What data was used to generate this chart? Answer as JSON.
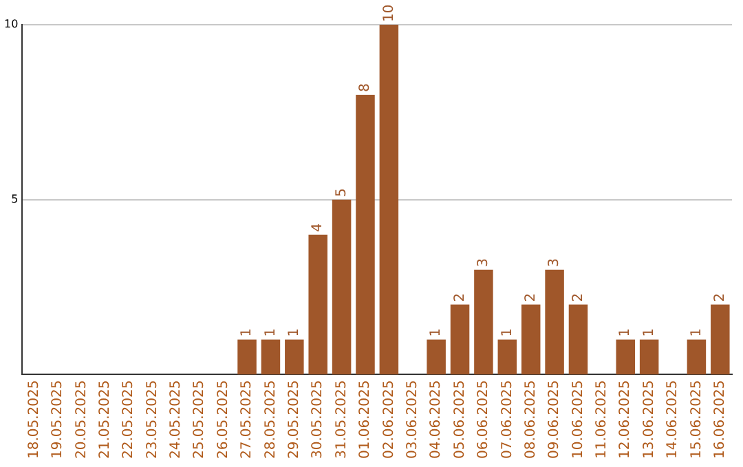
{
  "chart_data": {
    "type": "bar",
    "categories": [
      "18.05.2025",
      "19.05.2025",
      "20.05.2025",
      "21.05.2025",
      "22.05.2025",
      "23.05.2025",
      "24.05.2025",
      "25.05.2025",
      "26.05.2025",
      "27.05.2025",
      "28.05.2025",
      "29.05.2025",
      "30.05.2025",
      "31.05.2025",
      "01.06.2025",
      "02.06.2025",
      "03.06.2025",
      "04.06.2025",
      "05.06.2025",
      "06.06.2025",
      "07.06.2025",
      "08.06.2025",
      "09.06.2025",
      "10.06.2025",
      "11.06.2025",
      "12.06.2025",
      "13.06.2025",
      "14.06.2025",
      "15.06.2025",
      "16.06.2025"
    ],
    "values": [
      0,
      0,
      0,
      0,
      0,
      0,
      0,
      0,
      0,
      1,
      1,
      1,
      4,
      5,
      8,
      10,
      0,
      1,
      2,
      3,
      1,
      2,
      3,
      2,
      0,
      1,
      1,
      0,
      1,
      2
    ],
    "value_labels": [
      null,
      null,
      null,
      null,
      null,
      null,
      null,
      null,
      null,
      "1",
      "1",
      "1",
      "4",
      "5",
      "8",
      "10",
      null,
      "1",
      "2",
      "3",
      "1",
      "2",
      "3",
      "2",
      null,
      "1",
      "1",
      null,
      "1",
      "2"
    ],
    "color": "#a0572a",
    "ylim": [
      0,
      10
    ],
    "yticks": [
      5,
      10
    ],
    "grid": "y",
    "legend": false
  }
}
